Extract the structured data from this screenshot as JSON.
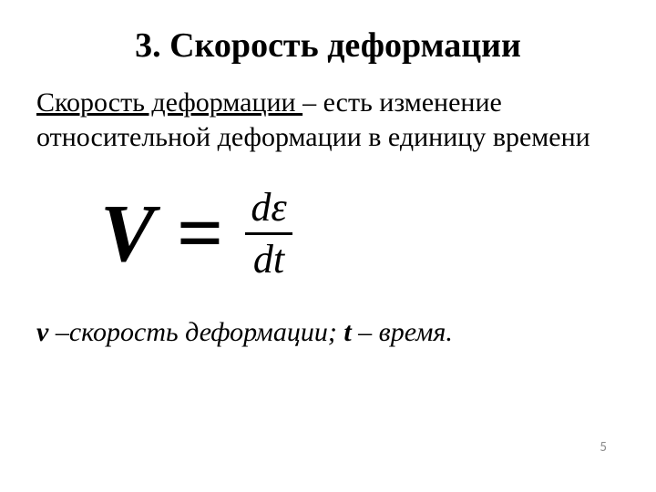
{
  "title": "3. Скорость деформации",
  "definition": {
    "term": "Скорость деформации ",
    "rest1": "– есть изменение",
    "line2": "относительной деформации в единицу времени"
  },
  "formula": {
    "lhs": "V",
    "eq": "=",
    "numerator": "dε",
    "denominator": "dt"
  },
  "legend": {
    "v_sym": "v",
    "v_text": " –скорость деформации; ",
    "t_sym": "t",
    "t_text": " – время."
  },
  "page_number": "5"
}
